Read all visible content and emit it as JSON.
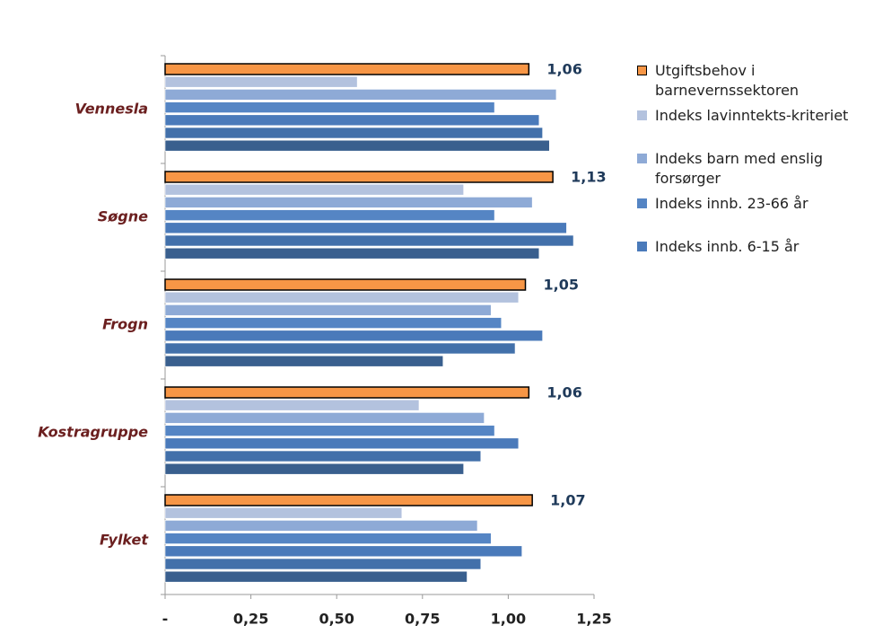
{
  "chart_data": {
    "type": "hbar",
    "categories": [
      "Vennesla",
      "Søgne",
      "Frogn",
      "Kostragruppe",
      "Fylket"
    ],
    "series": [
      {
        "name": "Utgiftsbehov i barnevernssektoren",
        "color": "#f79646",
        "values": [
          1.06,
          1.13,
          1.05,
          1.06,
          1.07
        ],
        "value_labels": [
          "1,06",
          "1,13",
          "1,05",
          "1,06",
          "1,07"
        ]
      },
      {
        "name": "Indeks lavinntekts-kriteriet",
        "color": "#b3c2de",
        "values": [
          0.56,
          0.87,
          1.03,
          0.74,
          0.69
        ]
      },
      {
        "name": "Indeks barn med enslig forsørger",
        "color": "#8eaad6",
        "values": [
          1.14,
          1.07,
          0.95,
          0.93,
          0.91
        ]
      },
      {
        "name": "Indeks innb. 23-66 år",
        "color": "#5585c4",
        "values": [
          0.96,
          0.96,
          0.98,
          0.96,
          0.95
        ]
      },
      {
        "name": "Indeks innb. 6-15 år",
        "color": "#4a7aba",
        "values": [
          1.09,
          1.17,
          1.1,
          1.03,
          1.04
        ]
      },
      {
        "color": "#4270aa",
        "values": [
          1.1,
          1.19,
          1.02,
          0.92,
          0.92
        ]
      },
      {
        "color": "#395f8e",
        "values": [
          1.12,
          1.09,
          0.81,
          0.87,
          0.88
        ]
      }
    ],
    "xlim": [
      0,
      1.25
    ],
    "xticks": [
      {
        "value": 0,
        "label": "-"
      },
      {
        "value": 0.25,
        "label": "0,25"
      },
      {
        "value": 0.5,
        "label": "0,50"
      },
      {
        "value": 0.75,
        "label": "0,75"
      },
      {
        "value": 1.0,
        "label": "1,00"
      },
      {
        "value": 1.25,
        "label": "1,25"
      }
    ]
  }
}
